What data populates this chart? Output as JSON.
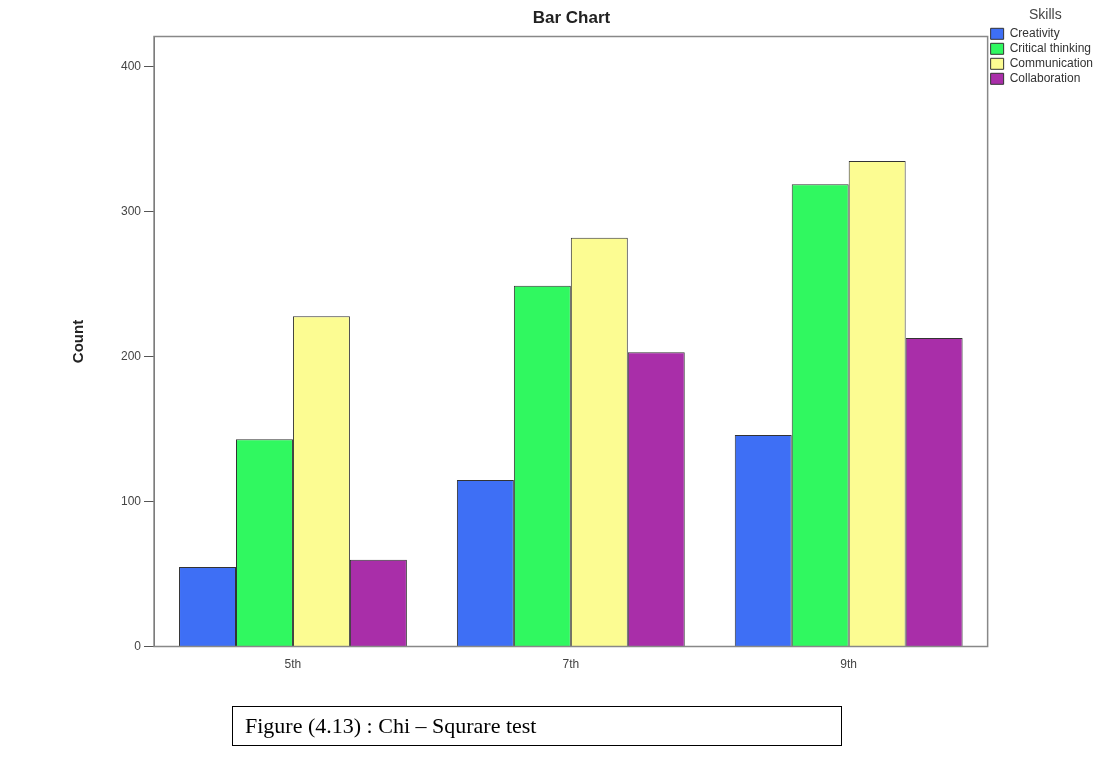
{
  "chart_data": {
    "type": "bar",
    "title": "Bar Chart",
    "ylabel": "Count",
    "legend_title": "Skills",
    "legend": "top right",
    "grid": false,
    "categories": [
      "5th",
      "7th",
      "9th"
    ],
    "series": [
      {
        "name": "Creativity",
        "color": "#3e6ff5",
        "values": [
          55,
          115,
          146
        ]
      },
      {
        "name": "Critical thinking",
        "color": "#30f860",
        "values": [
          143,
          249,
          319
        ]
      },
      {
        "name": "Communication",
        "color": "#fcfc92",
        "values": [
          228,
          282,
          335
        ]
      },
      {
        "name": "Collaboration",
        "color": "#a92ea9",
        "values": [
          60,
          203,
          213
        ]
      }
    ],
    "ylim": [
      0,
      421
    ],
    "yticks": [
      0,
      100,
      200,
      300,
      400
    ],
    "annotations": [
      "Figure (4.13) : Chi – Squrare test"
    ]
  }
}
